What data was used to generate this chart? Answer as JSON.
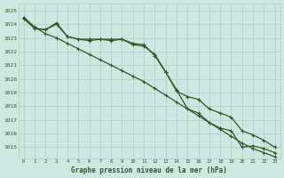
{
  "title": "Graphe pression niveau de la mer (hPa)",
  "bg_color": "#cce8e0",
  "grid_color": "#aacfc8",
  "line_color": "#2d5a27",
  "xlim": [
    -0.5,
    23.5
  ],
  "ylim": [
    1014.2,
    1025.5
  ],
  "yticks": [
    1015,
    1016,
    1017,
    1018,
    1019,
    1020,
    1021,
    1022,
    1023,
    1024,
    1025
  ],
  "xticks": [
    0,
    1,
    2,
    3,
    4,
    5,
    6,
    7,
    8,
    9,
    10,
    11,
    12,
    13,
    14,
    15,
    16,
    17,
    18,
    19,
    20,
    21,
    22,
    23
  ],
  "series1_y": [
    1024.5,
    1023.7,
    1023.6,
    1024.1,
    1023.1,
    1022.9,
    1022.9,
    1022.9,
    1022.9,
    1022.9,
    1022.6,
    1022.5,
    1021.7,
    1020.5,
    1019.2,
    1017.8,
    1017.5,
    1016.8,
    1016.4,
    1016.2,
    1015.0,
    1015.1,
    1014.9,
    1014.6
  ],
  "series2_y": [
    1024.4,
    1023.7,
    1023.6,
    1024.0,
    1023.1,
    1022.9,
    1022.8,
    1022.9,
    1022.8,
    1022.9,
    1022.5,
    1022.4,
    1021.8,
    1020.5,
    1019.1,
    1018.7,
    1018.5,
    1017.8,
    1017.5,
    1017.2,
    1016.2,
    1015.9,
    1015.5,
    1015.0
  ],
  "series3_y": [
    1024.5,
    1023.8,
    1023.3,
    1023.0,
    1022.6,
    1022.2,
    1021.8,
    1021.4,
    1021.0,
    1020.6,
    1020.2,
    1019.8,
    1019.3,
    1018.8,
    1018.3,
    1017.8,
    1017.3,
    1016.8,
    1016.3,
    1015.8,
    1015.3,
    1014.9,
    1014.6,
    1014.3
  ]
}
